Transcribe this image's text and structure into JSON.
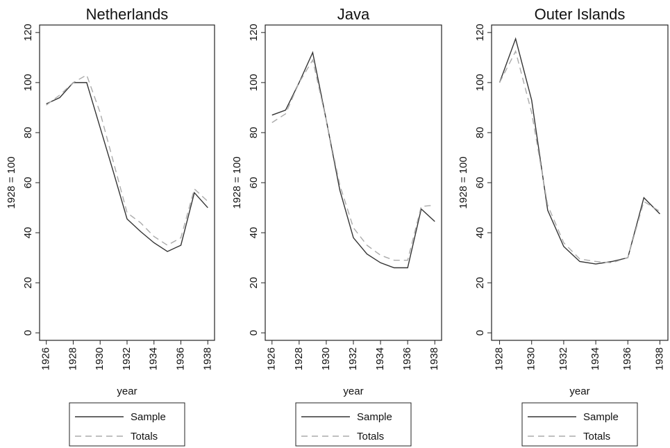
{
  "chart_data": [
    {
      "type": "line",
      "title": "Netherlands",
      "xlabel": "year",
      "ylabel": "1928 = 100",
      "x": [
        1926,
        1927,
        1928,
        1929,
        1930,
        1931,
        1932,
        1933,
        1934,
        1935,
        1936,
        1937,
        1938
      ],
      "xlim": [
        1925.5,
        1938.5
      ],
      "xticks": [
        1926,
        1928,
        1930,
        1932,
        1934,
        1936,
        1938
      ],
      "ylim": [
        -3,
        123
      ],
      "yticks": [
        0,
        20,
        40,
        60,
        80,
        100,
        120
      ],
      "series": [
        {
          "name": "Sample",
          "color": "#333333",
          "dash": "solid",
          "values": [
            91.5,
            94,
            100,
            100,
            82,
            64,
            45.5,
            40.5,
            36,
            32.5,
            35,
            56,
            50
          ]
        },
        {
          "name": "Totals",
          "color": "#aaaaaa",
          "dash": "dashed",
          "values": [
            91,
            95,
            100,
            103,
            88,
            68,
            48,
            44,
            38.5,
            35,
            38,
            57.5,
            52.5
          ]
        }
      ]
    },
    {
      "type": "line",
      "title": "Java",
      "xlabel": "year",
      "ylabel": "1928 = 100",
      "x": [
        1926,
        1927,
        1928,
        1929,
        1930,
        1931,
        1932,
        1933,
        1934,
        1935,
        1936,
        1937,
        1938
      ],
      "xlim": [
        1925.5,
        1938.5
      ],
      "xticks": [
        1926,
        1928,
        1930,
        1932,
        1934,
        1936,
        1938
      ],
      "ylim": [
        -3,
        123
      ],
      "yticks": [
        0,
        20,
        40,
        60,
        80,
        100,
        120
      ],
      "series": [
        {
          "name": "Sample",
          "color": "#333333",
          "dash": "solid",
          "values": [
            87,
            89,
            100,
            112,
            85,
            57,
            38,
            31.5,
            28,
            26,
            26,
            49.5,
            44.5
          ]
        },
        {
          "name": "Totals",
          "color": "#aaaaaa",
          "dash": "dashed",
          "values": [
            84,
            87.5,
            100,
            109,
            85,
            59,
            42,
            35,
            31,
            29,
            29,
            50.5,
            51
          ]
        }
      ]
    },
    {
      "type": "line",
      "title": "Outer Islands",
      "xlabel": "year",
      "ylabel": "1928 = 100",
      "x": [
        1928,
        1929,
        1930,
        1931,
        1932,
        1933,
        1934,
        1935,
        1936,
        1937,
        1938
      ],
      "xlim": [
        1927.5,
        1938.5
      ],
      "xticks": [
        1928,
        1930,
        1932,
        1934,
        1936,
        1938
      ],
      "ylim": [
        -3,
        123
      ],
      "yticks": [
        0,
        20,
        40,
        60,
        80,
        100,
        120
      ],
      "series": [
        {
          "name": "Sample",
          "color": "#333333",
          "dash": "solid",
          "values": [
            100,
            117.5,
            93,
            49,
            34.5,
            28.5,
            27.5,
            28.5,
            30,
            54,
            47.5
          ]
        },
        {
          "name": "Totals",
          "color": "#aaaaaa",
          "dash": "dashed",
          "values": [
            100,
            112.5,
            88,
            51,
            36,
            29.5,
            28.5,
            28,
            30,
            52.5,
            48.5
          ]
        }
      ]
    }
  ]
}
